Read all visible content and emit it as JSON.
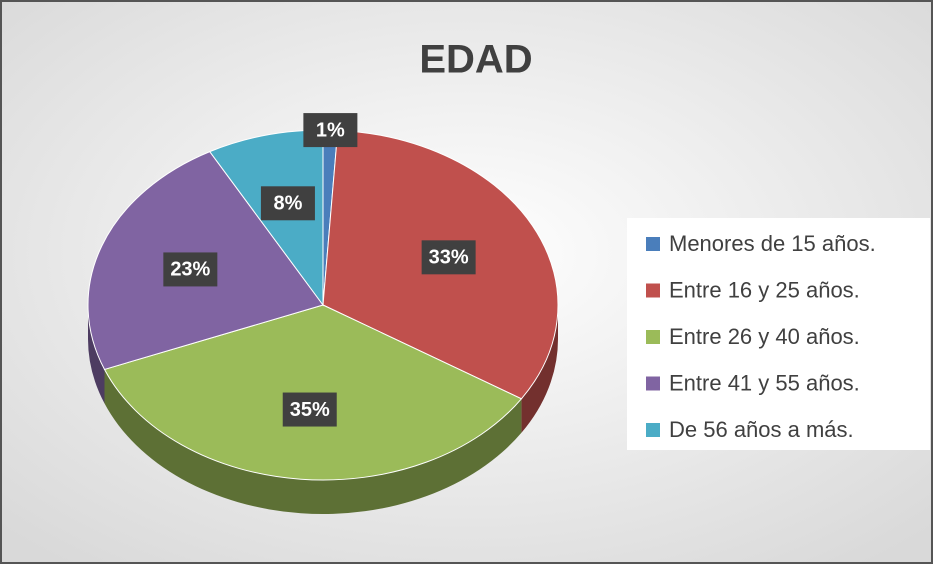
{
  "chart_data": {
    "type": "pie",
    "title": "EDAD",
    "categories": [
      "Menores de 15 años.",
      "Entre 16 y 25 años.",
      "Entre 26 y 40 años.",
      "Entre 41 y 55 años.",
      "De 56 años a más."
    ],
    "values": [
      1,
      33,
      35,
      23,
      8
    ],
    "value_labels": [
      "1%",
      "33%",
      "35%",
      "23%",
      "8%"
    ],
    "colors": [
      "#4a7ebb",
      "#c0504d",
      "#9bbb59",
      "#8064a2",
      "#4bacc6"
    ],
    "legend": "right"
  }
}
